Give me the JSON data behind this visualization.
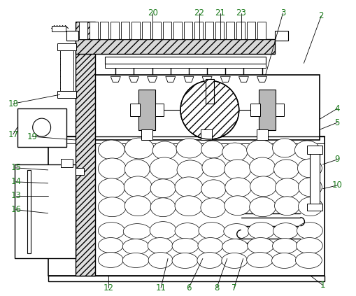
{
  "bg_color": "#ffffff",
  "line_color": "#000000",
  "label_color": "#1a7a1a",
  "label_fontsize": 8.5,
  "fig_width": 5.1,
  "fig_height": 4.23,
  "dpi": 100
}
